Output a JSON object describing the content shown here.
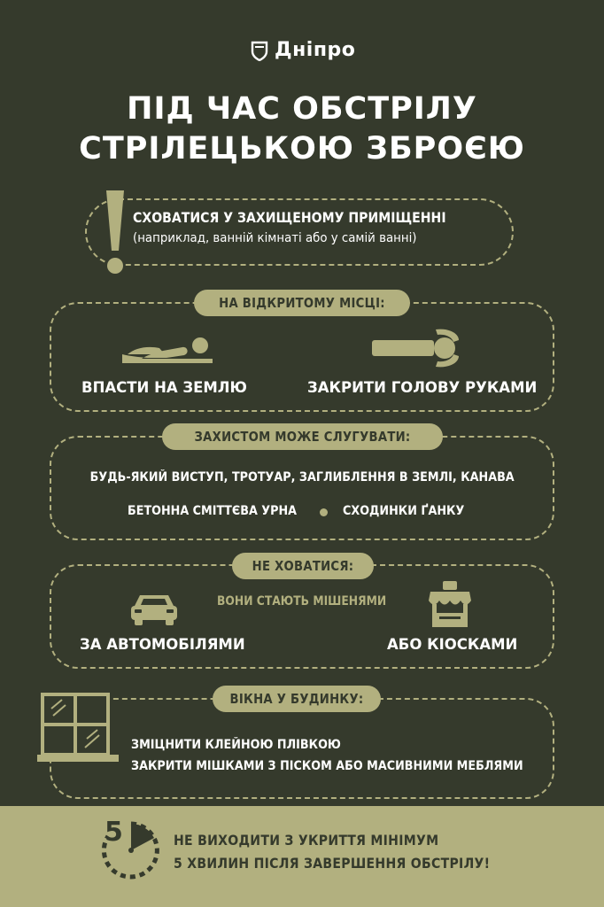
{
  "brand": {
    "name": "Дніпро",
    "logo_icon": "city-shield-icon"
  },
  "title": {
    "line1": "ПІД ЧАС ОБСТРІЛУ",
    "line2": "СТРІЛЕЦЬКОЮ ЗБРОЄЮ"
  },
  "shelter": {
    "icon": "exclamation-icon",
    "main": "СХОВАТИСЯ У ЗАХИЩЕНОМУ ПРИМІЩЕННІ",
    "note": "(наприклад, ванній кімнаті або у самій ванні)"
  },
  "open_area": {
    "header": "НА ВІДКРИТОМУ МІСЦІ:",
    "item1": {
      "icon": "person-lying-icon",
      "label": "ВПАСТИ НА ЗЕМЛЮ"
    },
    "item2": {
      "icon": "person-cover-head-icon",
      "label": "ЗАКРИТИ ГОЛОВУ РУКАМИ"
    }
  },
  "cover": {
    "header": "ЗАХИСТОМ МОЖЕ СЛУГУВАТИ:",
    "line1": "БУДЬ-ЯКИЙ ВИСТУП, ТРОТУАР, ЗАГЛИБЛЕННЯ В ЗЕМЛІ, КАНАВА",
    "line2_left": "БЕТОННА СМІТТЄВА УРНА",
    "line2_right": "СХОДИНКИ ҐАНКУ"
  },
  "dont_hide": {
    "header": "НЕ ХОВАТИСЯ:",
    "note": "ВОНИ СТАЮТЬ МІШЕНЯМИ",
    "item1": {
      "icon": "car-icon",
      "label": "ЗА АВТОМОБІЛЯМИ"
    },
    "item2": {
      "icon": "kiosk-icon",
      "label": "АБО КІОСКАМИ"
    }
  },
  "windows": {
    "header": "ВІКНА У БУДИНКУ:",
    "icon": "window-icon",
    "line1": "ЗМІЦНИТИ КЛЕЙНОЮ ПЛІВКОЮ",
    "line2": "ЗАКРИТИ МІШКАМИ З ПІСКОМ АБО МАСИВНИМИ МЕБЛЯМИ"
  },
  "footer": {
    "timer_icon": "timer-icon",
    "timer_number": "5",
    "line1": "НЕ ВИХОДИТИ З УКРИТТЯ МІНІМУМ",
    "line2": "5 ХВИЛИН ПІСЛЯ ЗАВЕРШЕННЯ ОБСТРІЛУ!"
  },
  "colors": {
    "background": "#353a2c",
    "accent": "#b2b07f",
    "text": "#ffffff"
  }
}
